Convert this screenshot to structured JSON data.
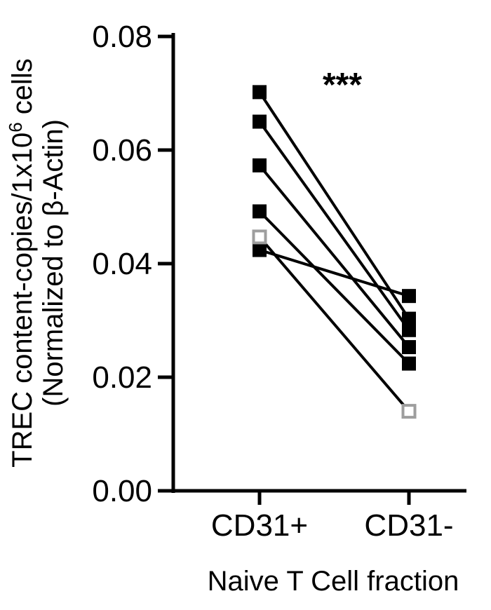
{
  "chart_data": {
    "type": "scatter",
    "subtype": "paired-dot-plot",
    "categories": [
      "CD31+",
      "CD31-"
    ],
    "xlabel": "Naive T Cell fraction",
    "ylabel_line1": "TREC content-copies/1x10",
    "ylabel_sup": "6",
    "ylabel_line1_tail": " cells",
    "ylabel_line2": "(Normalized to β-Actin)",
    "ylim": [
      0,
      0.08
    ],
    "yticks": [
      "0.00",
      "0.02",
      "0.04",
      "0.06",
      "0.08"
    ],
    "ytick_values": [
      0,
      0.02,
      0.04,
      0.06,
      0.08
    ],
    "annotation": "***",
    "grid": false,
    "series": [
      {
        "values": [
          0.0702,
          0.0303
        ],
        "marker": "filled-square",
        "color": "#000000"
      },
      {
        "values": [
          0.065,
          0.0283
        ],
        "marker": "filled-square",
        "color": "#000000"
      },
      {
        "values": [
          0.0573,
          0.0253
        ],
        "marker": "filled-square",
        "color": "#000000"
      },
      {
        "values": [
          0.0492,
          0.0224
        ],
        "marker": "filled-square",
        "color": "#000000"
      },
      {
        "values": [
          0.0424,
          0.0343
        ],
        "marker": "filled-square",
        "color": "#000000"
      },
      {
        "values": [
          0.0447,
          0.014
        ],
        "marker": "open-square",
        "color": "#9e9e9e"
      }
    ]
  }
}
